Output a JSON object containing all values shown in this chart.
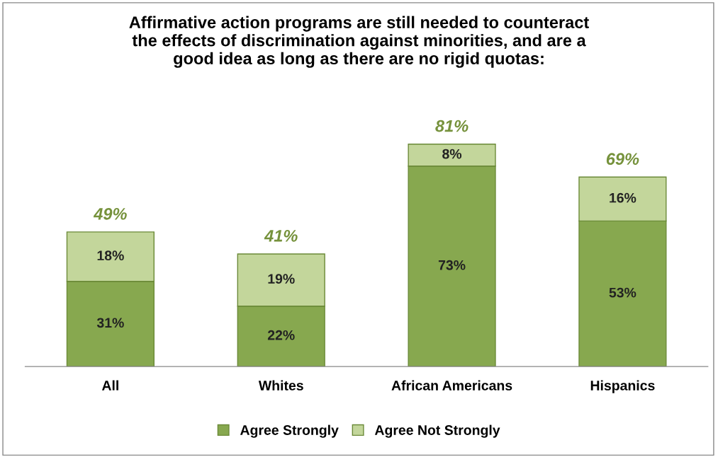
{
  "chart_data": {
    "type": "bar",
    "title": "Affirmative action programs are still needed to counteract\nthe effects of discrimination against minorities, and are a\ngood idea as long as there are no rigid quotas:",
    "categories": [
      "All",
      "Whites",
      "African Americans",
      "Hispanics"
    ],
    "stacked": true,
    "tick_labels": "x",
    "grid": false,
    "legend": "bottom",
    "series": [
      {
        "name": "Agree Strongly",
        "color": "#87a84f",
        "values": [
          31,
          22,
          73,
          53
        ],
        "value_labels": [
          "31%",
          "22%",
          "73%",
          "53%"
        ]
      },
      {
        "name": "Agree Not Strongly",
        "color": "#c3d69b",
        "values": [
          18,
          19,
          8,
          16
        ],
        "value_labels": [
          "18%",
          "19%",
          "8%",
          "16%"
        ]
      }
    ],
    "totals": [
      "49%",
      "41%",
      "81%",
      "69%"
    ]
  }
}
